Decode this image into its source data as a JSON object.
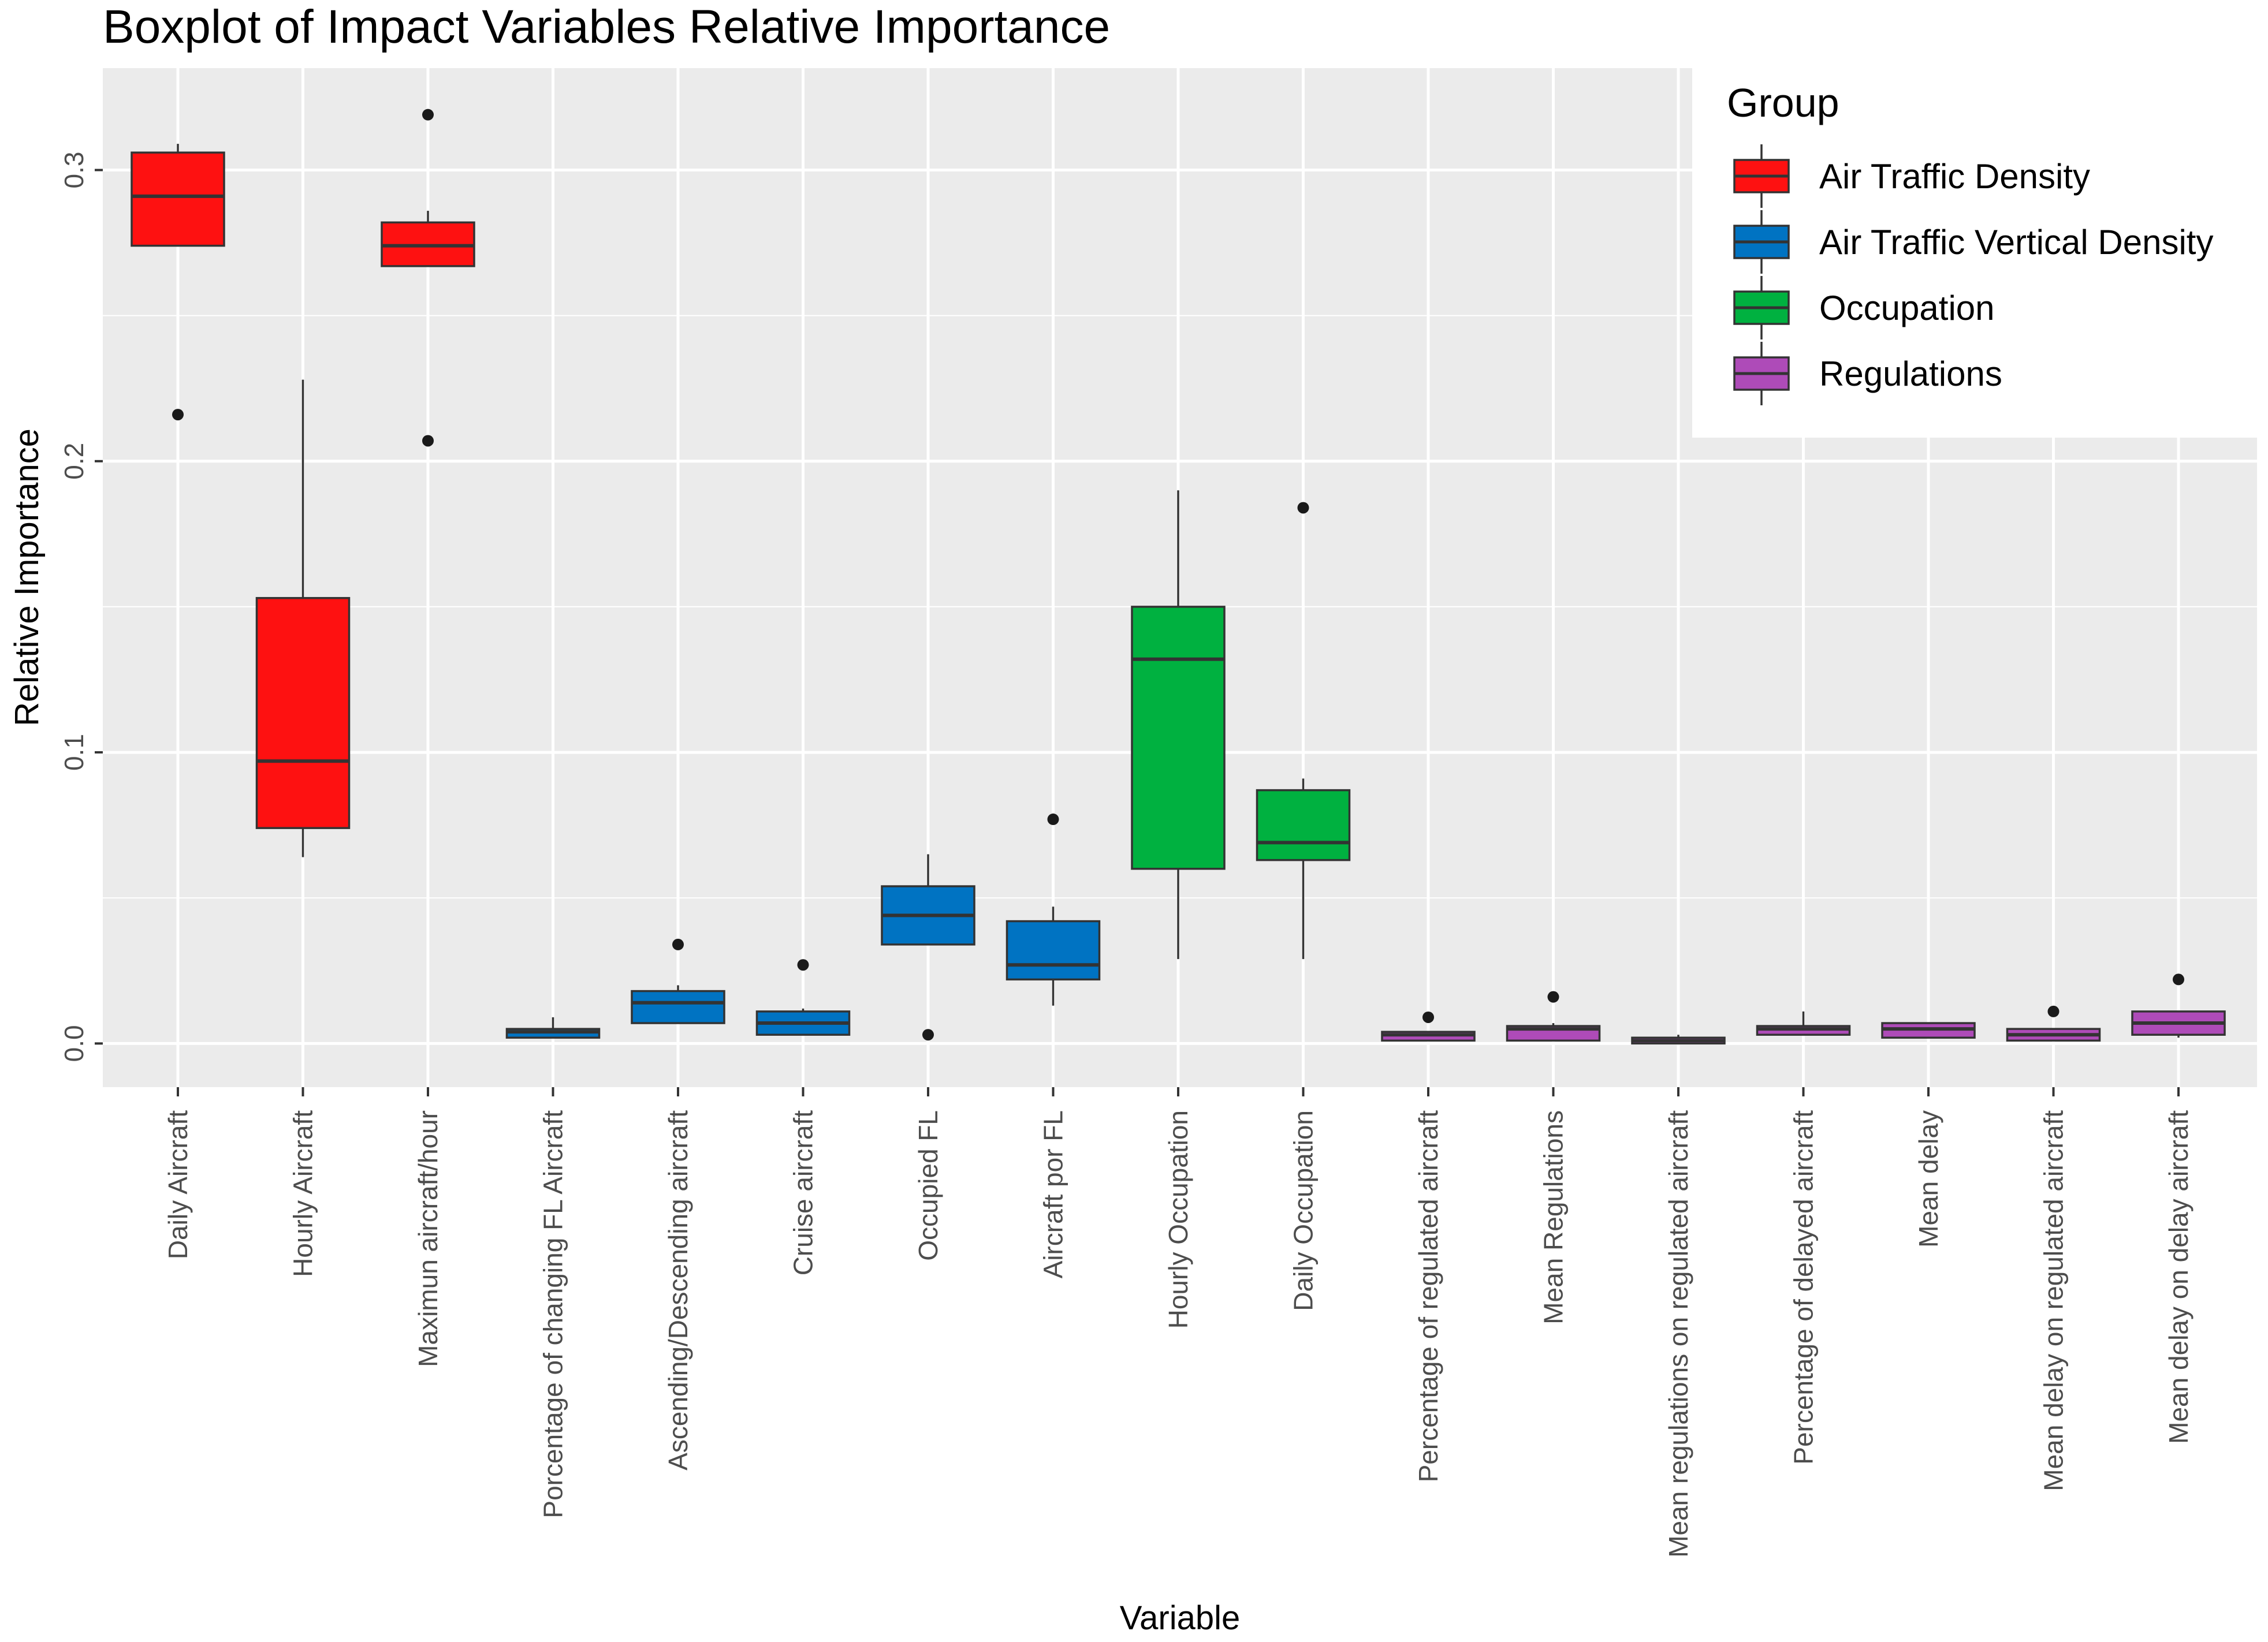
{
  "chart_data": {
    "type": "boxplot",
    "title": "Boxplot of Impact Variables Relative Importance",
    "xlabel": "Variable",
    "ylabel": "Relative Importance",
    "ylim": [
      -0.015,
      0.335
    ],
    "yticks": [
      "0.0",
      "0.1",
      "0.2",
      "0.3"
    ],
    "ytick_values": [
      0.0,
      0.1,
      0.2,
      0.3
    ],
    "grid": true,
    "legend": {
      "title": "Group",
      "position": "top-right",
      "entries": [
        {
          "label": "Air Traffic Density",
          "color": "#fe1111"
        },
        {
          "label": "Air Traffic Vertical  Density",
          "color": "#0073c2"
        },
        {
          "label": "Occupation",
          "color": "#00b140"
        },
        {
          "label": "Regulations",
          "color": "#ae4bb8"
        }
      ]
    },
    "categories": [
      "Daily Aircraft",
      "Hourly Aircraft",
      "Maximun aircraft/hour",
      "Porcentage of changing FL Aircraft",
      "Ascending/Descending aircraft",
      "Cruise aircraft",
      "Occupied FL",
      "Aircraft por FL",
      "Hourly Occupation",
      "Daily Occupation",
      "Percentage of regulated aircraft",
      "Mean Regulations",
      "Mean regulations on regulated aircraft",
      "Percentage of delayed aircraft",
      "Mean delay",
      "Mean delay on regulated aircraft",
      "Mean delay on delay aircraft"
    ],
    "boxes": [
      {
        "group": 0,
        "whisker_low": 0.274,
        "q1": 0.274,
        "median": 0.291,
        "q3": 0.306,
        "whisker_high": 0.309,
        "outliers": [
          0.216
        ]
      },
      {
        "group": 0,
        "whisker_low": 0.064,
        "q1": 0.074,
        "median": 0.097,
        "q3": 0.153,
        "whisker_high": 0.228,
        "outliers": []
      },
      {
        "group": 0,
        "whisker_low": 0.267,
        "q1": 0.267,
        "median": 0.274,
        "q3": 0.282,
        "whisker_high": 0.286,
        "outliers": [
          0.319,
          0.207
        ]
      },
      {
        "group": 1,
        "whisker_low": 0.002,
        "q1": 0.002,
        "median": 0.004,
        "q3": 0.005,
        "whisker_high": 0.009,
        "outliers": []
      },
      {
        "group": 1,
        "whisker_low": 0.007,
        "q1": 0.007,
        "median": 0.014,
        "q3": 0.018,
        "whisker_high": 0.02,
        "outliers": [
          0.034
        ]
      },
      {
        "group": 1,
        "whisker_low": 0.003,
        "q1": 0.003,
        "median": 0.007,
        "q3": 0.011,
        "whisker_high": 0.012,
        "outliers": [
          0.027
        ]
      },
      {
        "group": 1,
        "whisker_low": 0.034,
        "q1": 0.034,
        "median": 0.044,
        "q3": 0.054,
        "whisker_high": 0.065,
        "outliers": [
          0.003
        ]
      },
      {
        "group": 1,
        "whisker_low": 0.013,
        "q1": 0.022,
        "median": 0.027,
        "q3": 0.042,
        "whisker_high": 0.047,
        "outliers": [
          0.077
        ]
      },
      {
        "group": 2,
        "whisker_low": 0.029,
        "q1": 0.06,
        "median": 0.132,
        "q3": 0.15,
        "whisker_high": 0.19,
        "outliers": []
      },
      {
        "group": 2,
        "whisker_low": 0.029,
        "q1": 0.063,
        "median": 0.069,
        "q3": 0.087,
        "whisker_high": 0.091,
        "outliers": [
          0.184
        ]
      },
      {
        "group": 3,
        "whisker_low": 0.001,
        "q1": 0.001,
        "median": 0.003,
        "q3": 0.004,
        "whisker_high": 0.004,
        "outliers": [
          0.009
        ]
      },
      {
        "group": 3,
        "whisker_low": 0.001,
        "q1": 0.001,
        "median": 0.005,
        "q3": 0.006,
        "whisker_high": 0.007,
        "outliers": [
          0.016
        ]
      },
      {
        "group": 3,
        "whisker_low": 0.0,
        "q1": 0.0,
        "median": 0.001,
        "q3": 0.002,
        "whisker_high": 0.003,
        "outliers": []
      },
      {
        "group": 3,
        "whisker_low": 0.003,
        "q1": 0.003,
        "median": 0.005,
        "q3": 0.006,
        "whisker_high": 0.011,
        "outliers": []
      },
      {
        "group": 3,
        "whisker_low": 0.002,
        "q1": 0.002,
        "median": 0.005,
        "q3": 0.007,
        "whisker_high": 0.007,
        "outliers": []
      },
      {
        "group": 3,
        "whisker_low": 0.001,
        "q1": 0.001,
        "median": 0.003,
        "q3": 0.005,
        "whisker_high": 0.005,
        "outliers": [
          0.011
        ]
      },
      {
        "group": 3,
        "whisker_low": 0.002,
        "q1": 0.003,
        "median": 0.007,
        "q3": 0.011,
        "whisker_high": 0.011,
        "outliers": [
          0.022
        ]
      }
    ]
  }
}
